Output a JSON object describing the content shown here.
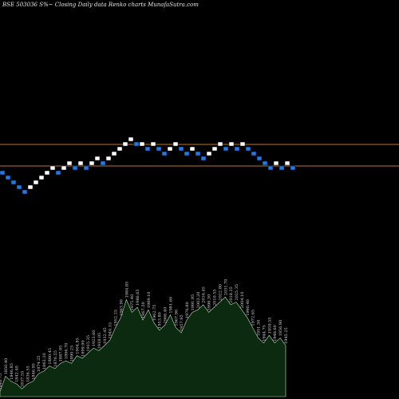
{
  "chart_data": {
    "type": "renko",
    "title": "BSE 503036  S%~  Closing Daily data  Renko  charts MunafaSutra.com",
    "colors": {
      "up_brick": "#ffffff",
      "down_brick": "#1f7be8",
      "reference_line": "#c2722a",
      "volume_fill": "#0b2a10",
      "volume_stroke": "#b9e6b9",
      "background": "#000000"
    },
    "reference_lines": [
      {
        "name": "upper",
        "level": 13.5
      },
      {
        "name": "lower",
        "level": 9.0
      }
    ],
    "bricks": [
      {
        "col": 0,
        "level": 8.0,
        "dir": "down"
      },
      {
        "col": 1,
        "level": 7.0,
        "dir": "down"
      },
      {
        "col": 2,
        "level": 6.0,
        "dir": "down"
      },
      {
        "col": 3,
        "level": 5.0,
        "dir": "down"
      },
      {
        "col": 4,
        "level": 4.0,
        "dir": "down"
      },
      {
        "col": 5,
        "level": 5.0,
        "dir": "up"
      },
      {
        "col": 6,
        "level": 6.0,
        "dir": "up"
      },
      {
        "col": 7,
        "level": 7.0,
        "dir": "up"
      },
      {
        "col": 8,
        "level": 8.0,
        "dir": "up"
      },
      {
        "col": 9,
        "level": 9.0,
        "dir": "up"
      },
      {
        "col": 10,
        "level": 8.0,
        "dir": "down"
      },
      {
        "col": 11,
        "level": 9.0,
        "dir": "up"
      },
      {
        "col": 12,
        "level": 10.0,
        "dir": "up"
      },
      {
        "col": 13,
        "level": 9.0,
        "dir": "down"
      },
      {
        "col": 14,
        "level": 10.0,
        "dir": "up"
      },
      {
        "col": 15,
        "level": 9.0,
        "dir": "down"
      },
      {
        "col": 16,
        "level": 10.0,
        "dir": "up"
      },
      {
        "col": 17,
        "level": 11.0,
        "dir": "up"
      },
      {
        "col": 18,
        "level": 10.0,
        "dir": "down"
      },
      {
        "col": 19,
        "level": 11.0,
        "dir": "up"
      },
      {
        "col": 20,
        "level": 12.0,
        "dir": "up"
      },
      {
        "col": 21,
        "level": 13.0,
        "dir": "up"
      },
      {
        "col": 22,
        "level": 14.0,
        "dir": "up"
      },
      {
        "col": 23,
        "level": 15.0,
        "dir": "up"
      },
      {
        "col": 24,
        "level": 14.0,
        "dir": "down"
      },
      {
        "col": 25,
        "level": 14.0,
        "dir": "up"
      },
      {
        "col": 26,
        "level": 13.0,
        "dir": "down"
      },
      {
        "col": 27,
        "level": 14.0,
        "dir": "up"
      },
      {
        "col": 28,
        "level": 13.0,
        "dir": "down"
      },
      {
        "col": 29,
        "level": 12.0,
        "dir": "down"
      },
      {
        "col": 30,
        "level": 13.0,
        "dir": "up"
      },
      {
        "col": 31,
        "level": 14.0,
        "dir": "up"
      },
      {
        "col": 32,
        "level": 13.0,
        "dir": "down"
      },
      {
        "col": 33,
        "level": 12.0,
        "dir": "down"
      },
      {
        "col": 34,
        "level": 13.0,
        "dir": "up"
      },
      {
        "col": 35,
        "level": 12.0,
        "dir": "down"
      },
      {
        "col": 36,
        "level": 11.0,
        "dir": "down"
      },
      {
        "col": 37,
        "level": 12.0,
        "dir": "up"
      },
      {
        "col": 38,
        "level": 13.0,
        "dir": "up"
      },
      {
        "col": 39,
        "level": 14.0,
        "dir": "up"
      },
      {
        "col": 40,
        "level": 13.0,
        "dir": "down"
      },
      {
        "col": 41,
        "level": 14.0,
        "dir": "up"
      },
      {
        "col": 42,
        "level": 13.0,
        "dir": "down"
      },
      {
        "col": 43,
        "level": 14.0,
        "dir": "up"
      },
      {
        "col": 44,
        "level": 13.0,
        "dir": "down"
      },
      {
        "col": 45,
        "level": 12.0,
        "dir": "down"
      },
      {
        "col": 46,
        "level": 11.0,
        "dir": "down"
      },
      {
        "col": 47,
        "level": 10.0,
        "dir": "down"
      },
      {
        "col": 48,
        "level": 9.0,
        "dir": "down"
      },
      {
        "col": 49,
        "level": 10.0,
        "dir": "up"
      },
      {
        "col": 50,
        "level": 9.0,
        "dir": "down"
      },
      {
        "col": 51,
        "level": 10.0,
        "dir": "up"
      },
      {
        "col": 52,
        "level": 9.0,
        "dir": "down"
      }
    ],
    "volume": [
      {
        "value": 2,
        "label": "1846.75"
      },
      {
        "value": 8,
        "label": "1850.40"
      },
      {
        "value": 6,
        "label": "1846.85"
      },
      {
        "value": 5,
        "label": "1842.40"
      },
      {
        "value": 3,
        "label": "1837.55"
      },
      {
        "value": 5,
        "label": "1836.55"
      },
      {
        "value": 6,
        "label": "1846.95"
      },
      {
        "value": 9,
        "label": "1874.25"
      },
      {
        "value": 10,
        "label": "1863.20"
      },
      {
        "value": 12,
        "label": "1880.45"
      },
      {
        "value": 11,
        "label": "1876.55"
      },
      {
        "value": 13,
        "label": "1887.95"
      },
      {
        "value": 14,
        "label": "1896.70"
      },
      {
        "value": 13,
        "label": "1890.25"
      },
      {
        "value": 16,
        "label": "1904.85"
      },
      {
        "value": 15,
        "label": "1899.90"
      },
      {
        "value": 17,
        "label": "1915.35"
      },
      {
        "value": 19,
        "label": "1923.60"
      },
      {
        "value": 18,
        "label": "1918.05"
      },
      {
        "value": 20,
        "label": "1932.45"
      },
      {
        "value": 22,
        "label": "1940.15"
      },
      {
        "value": 27,
        "label": "1952.25"
      },
      {
        "value": 31,
        "label": "1963.90"
      },
      {
        "value": 38,
        "label": "1984.85"
      },
      {
        "value": 33,
        "label": "1975.40"
      },
      {
        "value": 35,
        "label": "1986.65"
      },
      {
        "value": 30,
        "label": "1967.50"
      },
      {
        "value": 34,
        "label": "1989.10"
      },
      {
        "value": 29,
        "label": "1962.75"
      },
      {
        "value": 26,
        "label": "1953.80"
      },
      {
        "value": 28,
        "label": "1966.40"
      },
      {
        "value": 32,
        "label": "1981.60"
      },
      {
        "value": 27,
        "label": "1967.90"
      },
      {
        "value": 25,
        "label": "1957.95"
      },
      {
        "value": 30,
        "label": "1976.80"
      },
      {
        "value": 33,
        "label": "1991.95"
      },
      {
        "value": 34,
        "label": "2003.20"
      },
      {
        "value": 36,
        "label": "2016.45"
      },
      {
        "value": 33,
        "label": "1998.30"
      },
      {
        "value": 35,
        "label": "2010.55"
      },
      {
        "value": 37,
        "label": "2022.80"
      },
      {
        "value": 39,
        "label": "2031.70"
      },
      {
        "value": 36,
        "label": "2018.25"
      },
      {
        "value": 37,
        "label": "2025.35"
      },
      {
        "value": 34,
        "label": "2004.10"
      },
      {
        "value": 31,
        "label": "1990.40"
      },
      {
        "value": 27,
        "label": "1972.65"
      },
      {
        "value": 23,
        "label": "1951.30"
      },
      {
        "value": 21,
        "label": "1944.75"
      },
      {
        "value": 24,
        "label": "1959.55"
      },
      {
        "value": 21,
        "label": "1948.60"
      },
      {
        "value": 23,
        "label": "1956.90"
      },
      {
        "value": 20,
        "label": "1945.25"
      }
    ]
  }
}
